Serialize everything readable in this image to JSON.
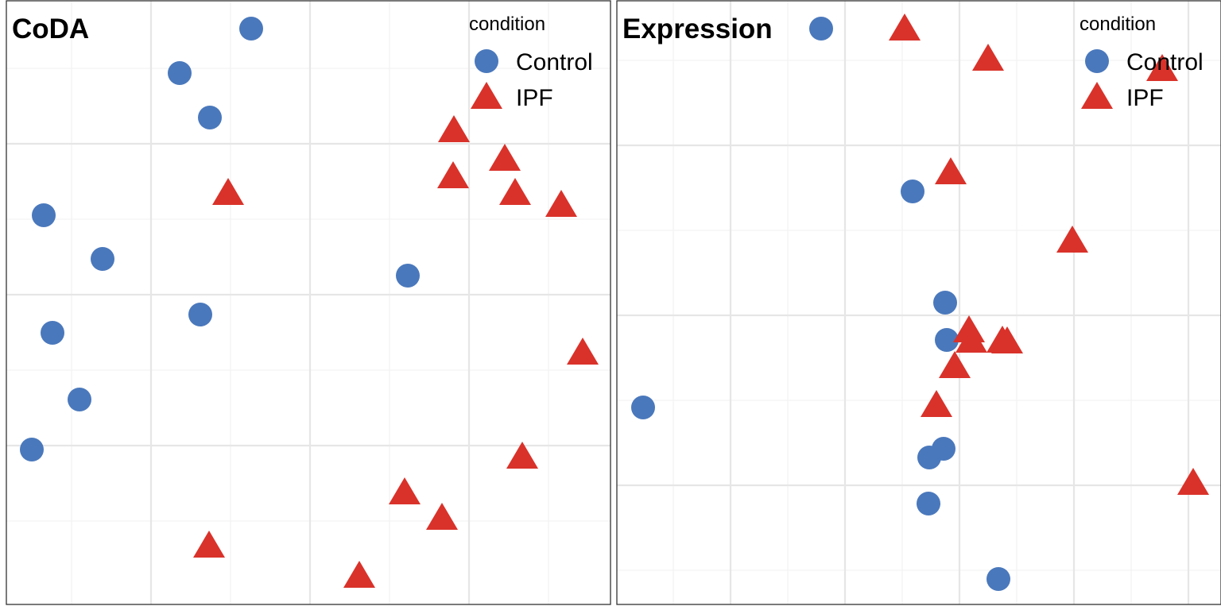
{
  "colors": {
    "Control": "#4a78bc",
    "IPF": "#d9322a"
  },
  "chart_data": [
    {
      "type": "scatter",
      "title": "CoDA",
      "xlabel": "",
      "ylabel": "",
      "xlim": [
        0,
        760
      ],
      "ylim": [
        0,
        760
      ],
      "grid": true,
      "legend": {
        "title": "condition",
        "position": "top-right",
        "entries": [
          "Control",
          "IPF"
        ]
      },
      "series": [
        {
          "name": "Control",
          "marker": "circle",
          "color": "#4a78bc",
          "points": [
            [
              308,
              725
            ],
            [
              218,
              669
            ],
            [
              256,
              613
            ],
            [
              47,
              490
            ],
            [
              121,
              435
            ],
            [
              505,
              414
            ],
            [
              244,
              365
            ],
            [
              58,
              342
            ],
            [
              92,
              258
            ],
            [
              32,
              195
            ]
          ]
        },
        {
          "name": "IPF",
          "marker": "triangle",
          "color": "#d9322a",
          "points": [
            [
              563,
              597
            ],
            [
              627,
              561
            ],
            [
              562,
              539
            ],
            [
              640,
              518
            ],
            [
              698,
              503
            ],
            [
              279,
              518
            ],
            [
              725,
              317
            ],
            [
              649,
              186
            ],
            [
              501,
              141
            ],
            [
              548,
              109
            ],
            [
              255,
              74
            ],
            [
              444,
              36
            ]
          ]
        }
      ]
    },
    {
      "type": "scatter",
      "title": "Expression",
      "xlabel": "",
      "ylabel": "",
      "xlim": [
        0,
        760
      ],
      "ylim": [
        0,
        760
      ],
      "grid": true,
      "legend": {
        "title": "condition",
        "position": "top-right",
        "entries": [
          "Control",
          "IPF"
        ]
      },
      "series": [
        {
          "name": "Control",
          "marker": "circle",
          "color": "#4a78bc",
          "points": [
            [
              257,
              725
            ],
            [
              372,
              520
            ],
            [
              413,
              380
            ],
            [
              415,
              333
            ],
            [
              33,
              248
            ],
            [
              411,
              196
            ],
            [
              393,
              185
            ],
            [
              392,
              127
            ],
            [
              480,
              32
            ]
          ]
        },
        {
          "name": "IPF",
          "marker": "triangle",
          "color": "#d9322a",
          "points": [
            [
              362,
              725
            ],
            [
              467,
              687
            ],
            [
              686,
              674
            ],
            [
              420,
              544
            ],
            [
              573,
              458
            ],
            [
              443,
              345
            ],
            [
              446,
              332
            ],
            [
              485,
              332
            ],
            [
              491,
              331
            ],
            [
              425,
              300
            ],
            [
              402,
              251
            ],
            [
              725,
              153
            ]
          ]
        }
      ]
    }
  ]
}
